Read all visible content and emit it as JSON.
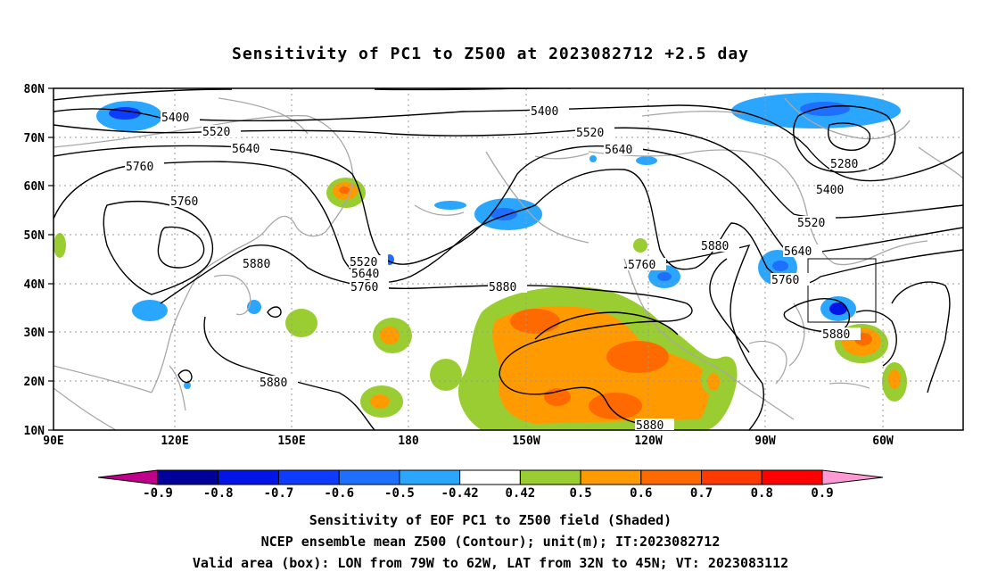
{
  "title": "Sensitivity of PC1 to Z500 at 2023082712 +2.5 day",
  "lat_labels": [
    "80N",
    "70N",
    "60N",
    "50N",
    "40N",
    "30N",
    "20N",
    "10N"
  ],
  "lon_labels": [
    "90E",
    "120E",
    "150E",
    "180",
    "150W",
    "120W",
    "90W",
    "60W"
  ],
  "contour_labels": {
    "c5400a": "5400",
    "c5400b": "5400",
    "c5400c": "5400",
    "c5520a": "5520",
    "c5520b": "5520",
    "c5520c": "5520",
    "c5520d": "5520",
    "c5640a": "5640",
    "c5640b": "5640",
    "c5640c": "5640",
    "c5640d": "5640",
    "c5760a": "5760",
    "c5760b": "5760",
    "c5760c": "5760",
    "c5760d": "5760",
    "c5760e": "5760",
    "c5880a": "5880",
    "c5880b": "5880",
    "c5880c": "5880",
    "c5880d": "5880",
    "c5880e": "5880",
    "c5880f": "5880",
    "c5280": "5280"
  },
  "colorbar": {
    "labels": [
      "-0.9",
      "-0.8",
      "-0.7",
      "-0.6",
      "-0.5",
      "-0.42",
      "0.42",
      "0.5",
      "0.6",
      "0.7",
      "0.8",
      "0.9"
    ],
    "colors": [
      "#00009a",
      "#0015e6",
      "#0d3cff",
      "#1f6fff",
      "#2aa6ff",
      "#ffffff",
      "#9acd32",
      "#ff9a00",
      "#ff6a00",
      "#ff3a00",
      "#ff0000"
    ],
    "under_color": "#c0008a",
    "over_color": "#ff9ad5"
  },
  "captions": {
    "line1": "Sensitivity of EOF PC1 to Z500 field (Shaded)",
    "line2": "NCEP ensemble mean Z500 (Contour); unit(m); IT:2023082712",
    "line3": "Valid area (box): LON from 79W to 62W, LAT from 32N to 45N; VT: 2023083112"
  },
  "valid_box": {
    "lon_min": -79,
    "lon_max": -62,
    "lat_min": 32,
    "lat_max": 45
  }
}
